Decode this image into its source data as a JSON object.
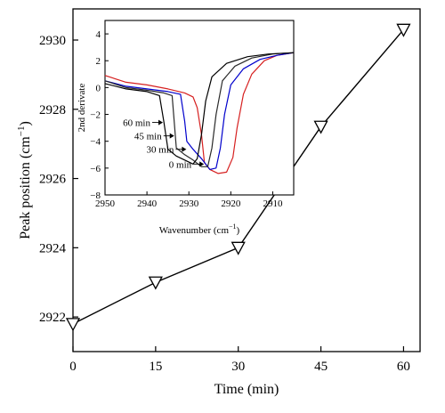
{
  "chart_data": [
    {
      "type": "line",
      "xlabel": "Time (min)",
      "ylabel": "Peak position (cm",
      "ylabel_sup": "−1",
      "ylabel_close": ")",
      "xlim": [
        0,
        63
      ],
      "ylim": [
        2921,
        2930.9
      ],
      "xticks": [
        0,
        15,
        30,
        45,
        60
      ],
      "xtick_labels": [
        "0",
        "15",
        "30",
        "45",
        "60"
      ],
      "yticks": [
        2922,
        2924,
        2926,
        2928,
        2930
      ],
      "ytick_labels": [
        "2922",
        "2924",
        "2926",
        "2928",
        "2930"
      ],
      "series": [
        {
          "marker": "down-triangle",
          "color": "#000000",
          "x": [
            0,
            15,
            30,
            45,
            60
          ],
          "y": [
            2921.8,
            2923.0,
            2924.0,
            2927.5,
            2930.3
          ]
        }
      ]
    },
    {
      "type": "line",
      "xlabel": "Wavenumber (cm",
      "xlabel_sup": "−1",
      "xlabel_close": ")",
      "ylabel": "2nd derivate",
      "xlim": [
        2950,
        2905
      ],
      "ylim": [
        -8,
        5
      ],
      "xticks": [
        2950,
        2940,
        2930,
        2920,
        2910
      ],
      "xtick_labels": [
        "2950",
        "2940",
        "2930",
        "2920",
        "2910"
      ],
      "yticks": [
        -8,
        -6,
        -4,
        -2,
        0,
        2,
        4
      ],
      "ytick_labels": [
        "−8",
        "−6",
        "−4",
        "−2",
        "0",
        "2",
        "4"
      ],
      "series": [
        {
          "label": "0 min",
          "color": "#d62020",
          "points": [
            [
              2950,
              0.9
            ],
            [
              2945,
              0.4
            ],
            [
              2940,
              0.2
            ],
            [
              2935,
              -0.1
            ],
            [
              2931,
              -0.4
            ],
            [
              2929,
              -0.7
            ],
            [
              2928,
              -1.5
            ],
            [
              2927,
              -3.5
            ],
            [
              2926.3,
              -5.6
            ],
            [
              2925,
              -6.1
            ],
            [
              2923,
              -6.4
            ],
            [
              2921,
              -6.3
            ],
            [
              2919.5,
              -5.2
            ],
            [
              2918.5,
              -3.0
            ],
            [
              2917,
              -0.5
            ],
            [
              2915,
              1.0
            ],
            [
              2912,
              2.0
            ],
            [
              2909,
              2.4
            ],
            [
              2905,
              2.6
            ]
          ]
        },
        {
          "label": "30 min",
          "color": "#0000cc",
          "points": [
            [
              2950,
              0.5
            ],
            [
              2945,
              0.1
            ],
            [
              2940,
              -0.1
            ],
            [
              2935,
              -0.3
            ],
            [
              2932,
              -0.5
            ],
            [
              2931,
              -2.5
            ],
            [
              2930.5,
              -4.0
            ],
            [
              2929,
              -4.6
            ],
            [
              2927,
              -5.3
            ],
            [
              2925,
              -6.1
            ],
            [
              2923.5,
              -6.0
            ],
            [
              2922.5,
              -4.5
            ],
            [
              2921.5,
              -2.0
            ],
            [
              2920,
              0.2
            ],
            [
              2917,
              1.4
            ],
            [
              2913,
              2.1
            ],
            [
              2909,
              2.4
            ],
            [
              2905,
              2.6
            ]
          ]
        },
        {
          "label": "45 min",
          "color": "#2a2a2a",
          "points": [
            [
              2950,
              0.5
            ],
            [
              2945,
              0.0
            ],
            [
              2940,
              -0.2
            ],
            [
              2936,
              -0.4
            ],
            [
              2934,
              -0.6
            ],
            [
              2933.5,
              -2.5
            ],
            [
              2933,
              -4.5
            ],
            [
              2931,
              -5.0
            ],
            [
              2929,
              -5.4
            ],
            [
              2927,
              -5.9
            ],
            [
              2925.5,
              -5.9
            ],
            [
              2924.5,
              -4.5
            ],
            [
              2923.5,
              -2.0
            ],
            [
              2922,
              0.5
            ],
            [
              2919,
              1.6
            ],
            [
              2915,
              2.2
            ],
            [
              2910,
              2.5
            ],
            [
              2905,
              2.6
            ]
          ]
        },
        {
          "label": "60 min",
          "color": "#000000",
          "points": [
            [
              2950,
              0.3
            ],
            [
              2945,
              -0.1
            ],
            [
              2940,
              -0.3
            ],
            [
              2937,
              -0.6
            ],
            [
              2936,
              -2.5
            ],
            [
              2935,
              -4.6
            ],
            [
              2933,
              -5.1
            ],
            [
              2931,
              -5.4
            ],
            [
              2929,
              -5.7
            ],
            [
              2928,
              -5.3
            ],
            [
              2927,
              -3.5
            ],
            [
              2926,
              -1.0
            ],
            [
              2924.5,
              0.8
            ],
            [
              2921,
              1.8
            ],
            [
              2916,
              2.3
            ],
            [
              2911,
              2.5
            ],
            [
              2905,
              2.6
            ]
          ]
        }
      ],
      "annotations": [
        {
          "text": "60 min",
          "x": 2936.2,
          "y": -2.6
        },
        {
          "text": "45 min",
          "x": 2933.5,
          "y": -3.6
        },
        {
          "text": "30 min",
          "x": 2930.6,
          "y": -4.6
        },
        {
          "text": "0 min",
          "x": 2926.4,
          "y": -5.7
        }
      ]
    }
  ]
}
